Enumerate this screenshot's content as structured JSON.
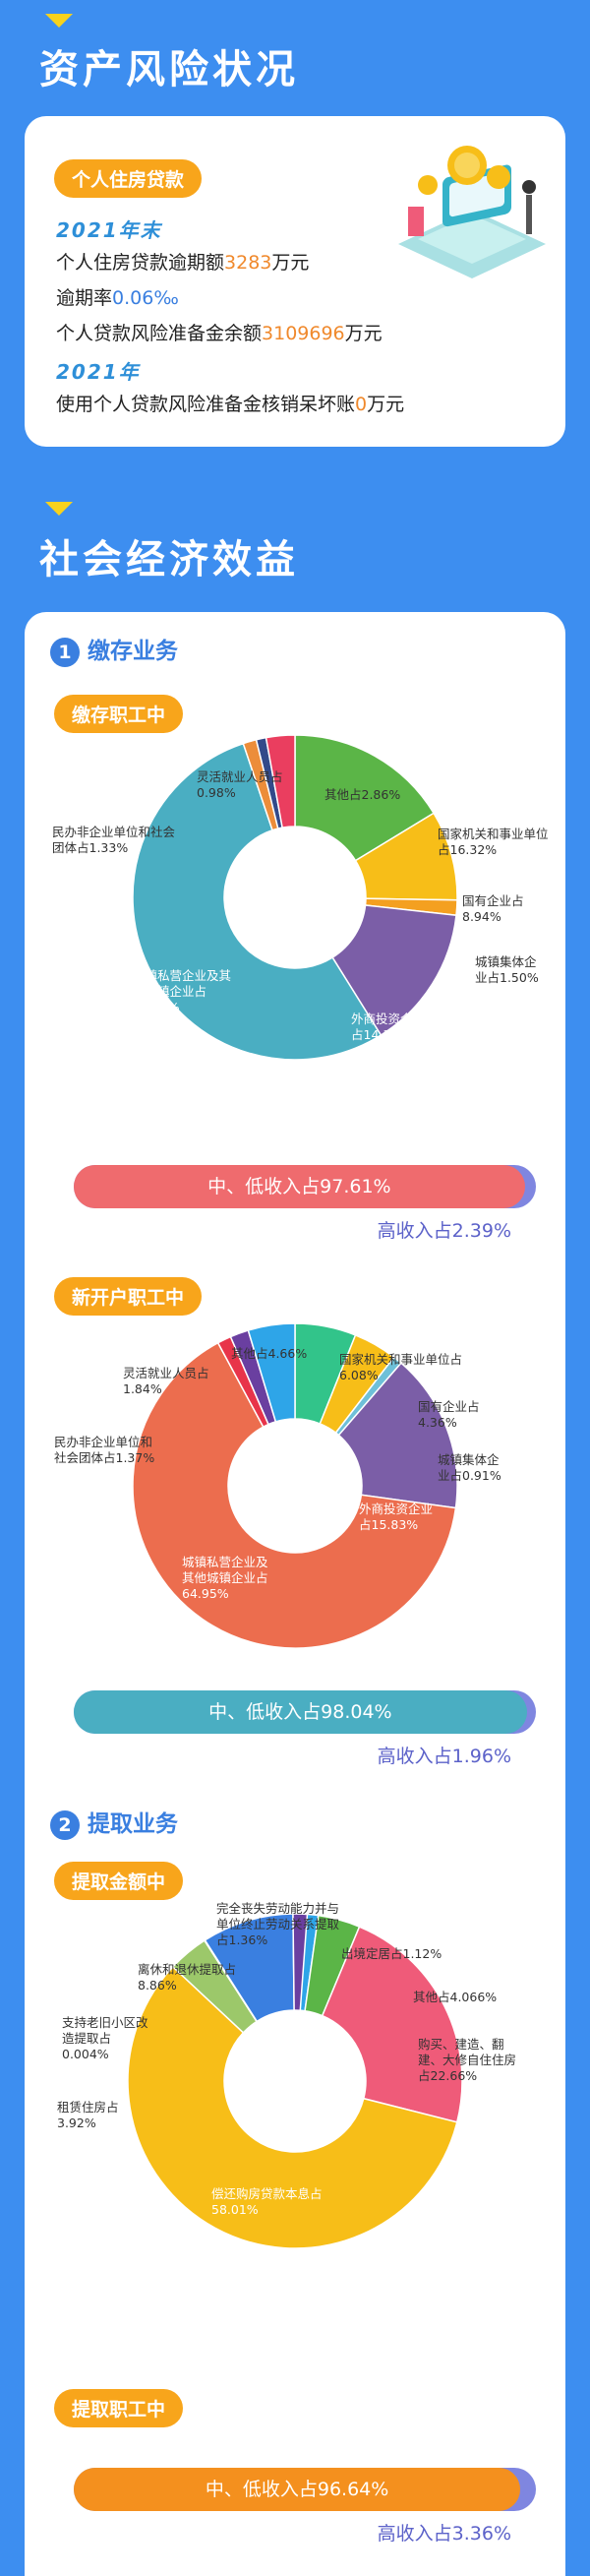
{
  "sections": {
    "asset": "资产风险状况",
    "social": "社会经济效益"
  },
  "asset_card": {
    "pill": "个人住房贷款",
    "year_end": "2021年末",
    "line1_pre": "个人住房贷款逾期额",
    "line1_val": "3283",
    "line1_suf": "万元",
    "line2_pre": "逾期率",
    "line2_val": "0.06‰",
    "line3_pre": "个人贷款风险准备金余额",
    "line3_val": "3109696",
    "line3_suf": "万元",
    "year": "2021年",
    "line4_pre": "使用个人贷款风险准备金核销呆坏账",
    "line4_val": "0",
    "line4_suf": "万元"
  },
  "deposit": {
    "num": "1",
    "title": "缴存业务"
  },
  "withdraw": {
    "num": "2",
    "title": "提取业务"
  },
  "colors": {
    "green": "#5bb547",
    "yellow": "#f7be18",
    "purple": "#7b5ea7",
    "teal": "#4aaec2",
    "orange": "#ec6d4e",
    "blue": "#3a7fe0",
    "red": "#ea3e5f",
    "pink": "#ef5b79"
  },
  "chart_data": [
    {
      "type": "pie",
      "title": "缴存职工中",
      "slices": [
        {
          "label": "国家机关和事业单位占16.32%",
          "value": 16.32,
          "color": "#5bb547"
        },
        {
          "label": "国有企业占8.94%",
          "value": 8.94,
          "color": "#f7be18"
        },
        {
          "label": "城镇集体企业占1.50%",
          "value": 1.5,
          "color": "#f4a020"
        },
        {
          "label": "外商投资企业占14.36%",
          "value": 14.36,
          "color": "#7b5ea7"
        },
        {
          "label": "城镇私营企业及其他城镇企业占53.71%",
          "value": 53.71,
          "color": "#4aaec2"
        },
        {
          "label": "民办非企业单位和社会团体占1.33%",
          "value": 1.33,
          "color": "#ec8d3a"
        },
        {
          "label": "灵活就业人员占0.98%",
          "value": 0.98,
          "color": "#324a8a"
        },
        {
          "label": "其他占2.86%",
          "value": 2.86,
          "color": "#ea3e5f"
        }
      ],
      "income": {
        "low_label": "中、低收入占97.61%",
        "low_value": 97.61,
        "high_label": "高收入占2.39%",
        "high_value": 2.39
      }
    },
    {
      "type": "pie",
      "title": "新开户职工中",
      "slices": [
        {
          "label": "国家机关和事业单位占6.08%",
          "value": 6.08,
          "color": "#32c48a"
        },
        {
          "label": "国有企业占4.36%",
          "value": 4.36,
          "color": "#f7be18"
        },
        {
          "label": "城镇集体企业占0.91%",
          "value": 0.91,
          "color": "#6ec0d8"
        },
        {
          "label": "外商投资企业占15.83%",
          "value": 15.83,
          "color": "#7b5ea7"
        },
        {
          "label": "城镇私营企业及其他城镇企业占64.95%",
          "value": 64.95,
          "color": "#ec6d4e"
        },
        {
          "label": "民办非企业单位和社会团体占1.37%",
          "value": 1.37,
          "color": "#e8344a"
        },
        {
          "label": "灵活就业人员占1.84%",
          "value": 1.84,
          "color": "#6a3fa0"
        },
        {
          "label": "其他占4.66%",
          "value": 4.66,
          "color": "#2ea5e8"
        }
      ],
      "income": {
        "low_label": "中、低收入占98.04%",
        "low_value": 98.04,
        "high_label": "高收入占1.96%",
        "high_value": 1.96
      }
    },
    {
      "type": "pie",
      "title": "提取金额中",
      "slices": [
        {
          "label": "出境定居占1.12%",
          "value": 1.12,
          "color": "#2ea5e8"
        },
        {
          "label": "其他占4.066%",
          "value": 4.066,
          "color": "#5bb547"
        },
        {
          "label": "购买、建造、翻建、大修自住住房占22.66%",
          "value": 22.66,
          "color": "#ef5b79"
        },
        {
          "label": "偿还购房贷款本息占58.01%",
          "value": 58.01,
          "color": "#f7be18"
        },
        {
          "label": "租赁住房占3.92%",
          "value": 3.92,
          "color": "#9cc86a"
        },
        {
          "label": "支持老旧小区改造提取占0.004%",
          "value": 0.004,
          "color": "#aaaaaa"
        },
        {
          "label": "离休和退休提取占8.86%",
          "value": 8.86,
          "color": "#3a7fe0"
        },
        {
          "label": "完全丧失劳动能力并与单位终止劳动关系提取占1.36%",
          "value": 1.36,
          "color": "#6a3fa0"
        }
      ]
    },
    {
      "type": "bar",
      "title": "提取职工中",
      "income": {
        "low_label": "中、低收入占96.64%",
        "low_value": 96.64,
        "high_label": "高收入占3.36%",
        "high_value": 3.36
      }
    }
  ]
}
